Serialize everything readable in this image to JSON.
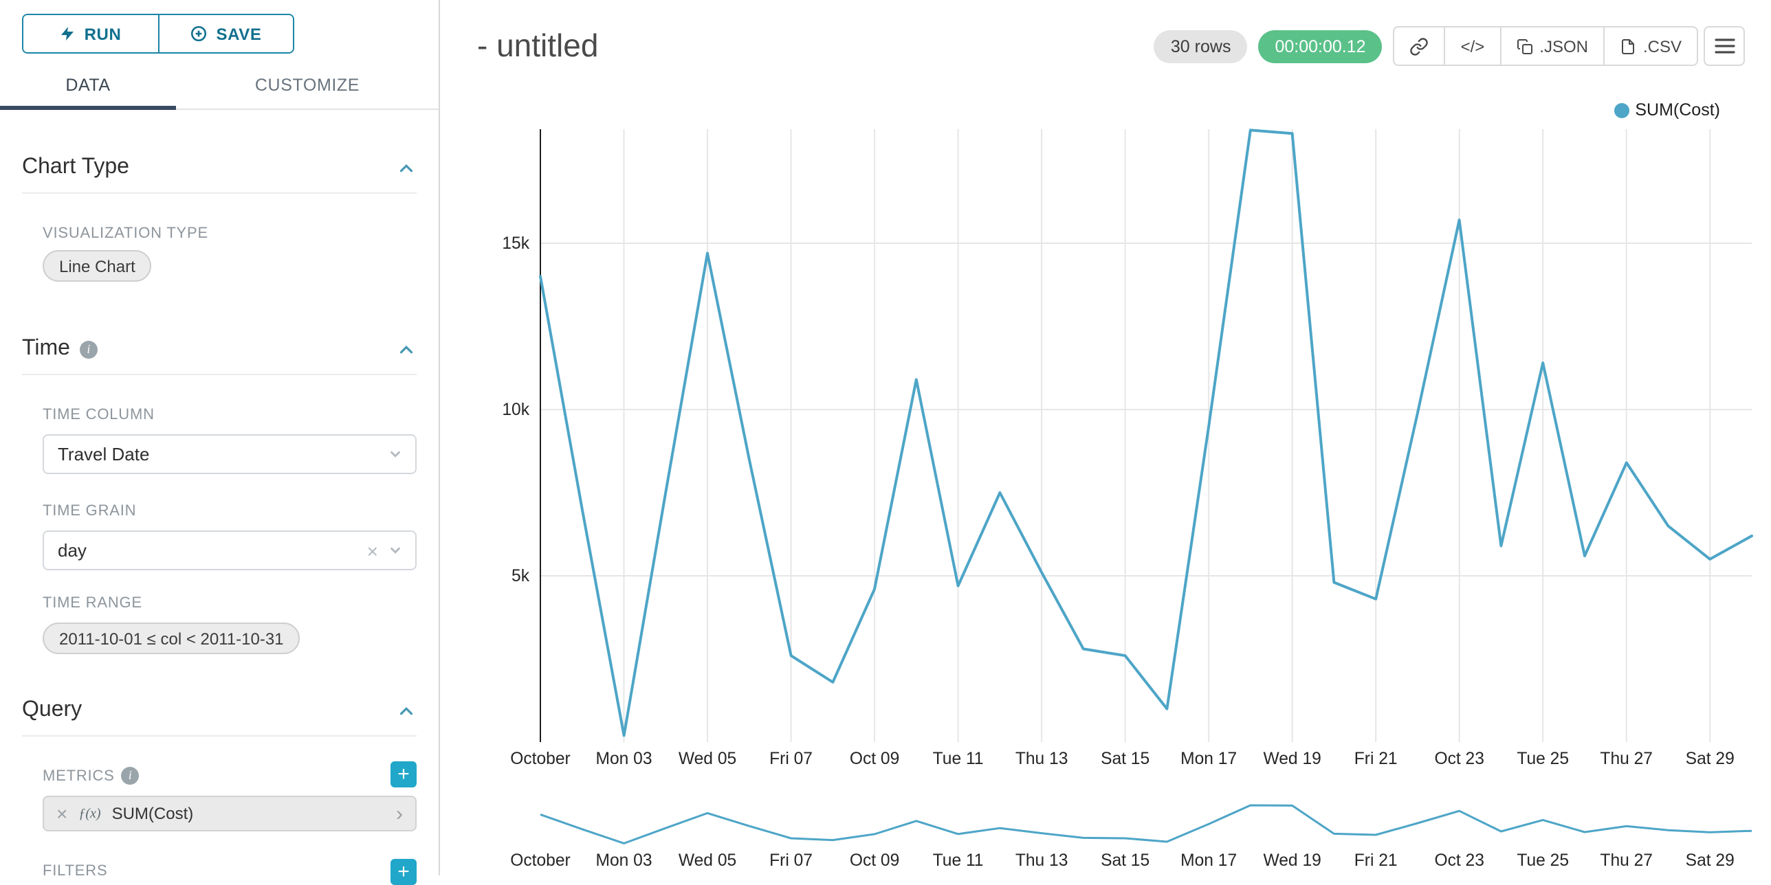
{
  "colors": {
    "primary": "#20a7c9",
    "button_outline": "#1a85a6",
    "line": "#4da5c7",
    "success_badge": "#5ac189",
    "rows_badge_bg": "#e4e4e4",
    "tab_underline": "#3a4a63"
  },
  "sidebar": {
    "run_button": "RUN",
    "save_button": "SAVE",
    "tabs": [
      {
        "label": "DATA",
        "active": true
      },
      {
        "label": "CUSTOMIZE",
        "active": false
      }
    ],
    "chart_type_section": {
      "title": "Chart Type",
      "visualization_type_label": "VISUALIZATION TYPE",
      "visualization_type_value": "Line Chart"
    },
    "time_section": {
      "title": "Time",
      "time_column_label": "TIME COLUMN",
      "time_column_value": "Travel Date",
      "time_grain_label": "TIME GRAIN",
      "time_grain_value": "day",
      "time_range_label": "TIME RANGE",
      "time_range_value": "2011-10-01 ≤ col < 2011-10-31"
    },
    "query_section": {
      "title": "Query",
      "metrics_label": "METRICS",
      "metric_fx": "ƒ(x)",
      "metric_value": "SUM(Cost)",
      "filters_label": "FILTERS",
      "add_button": "+"
    }
  },
  "header": {
    "title": "- untitled",
    "rows_badge": "30 rows",
    "timer_badge": "00:00:00.12",
    "embed_button": "</>",
    "json_button": ".JSON",
    "csv_button": ".CSV"
  },
  "chart_data": {
    "type": "line",
    "title": "- untitled",
    "x_start_date": "2011-10-01",
    "x_grain": "day",
    "row_count": 30,
    "series": [
      {
        "name": "SUM(Cost)",
        "color": "#4da5c7",
        "values": [
          14000,
          7000,
          200,
          7500,
          14700,
          8500,
          2600,
          1800,
          4600,
          10900,
          4700,
          7500,
          5100,
          2800,
          2600,
          1000,
          9500,
          18400,
          18300,
          4800,
          4300,
          9900,
          15700,
          5900,
          11400,
          5600,
          8400,
          6500,
          5500,
          6200
        ]
      }
    ],
    "x_tick_labels": [
      "October",
      "Mon 03",
      "Wed 05",
      "Fri 07",
      "Oct 09",
      "Tue 11",
      "Thu 13",
      "Sat 15",
      "Mon 17",
      "Wed 19",
      "Fri 21",
      "Oct 23",
      "Tue 25",
      "Thu 27",
      "Sat 29"
    ],
    "x_tick_indices": [
      0,
      2,
      4,
      6,
      8,
      10,
      12,
      14,
      16,
      18,
      20,
      22,
      24,
      26,
      28
    ],
    "y_ticks": [
      {
        "label": "5k",
        "value": 5000
      },
      {
        "label": "10k",
        "value": 10000
      },
      {
        "label": "15k",
        "value": 15000
      }
    ],
    "ylim": [
      0,
      18430
    ],
    "grid": true,
    "legend_position": "top-right",
    "has_preview_strip": true
  }
}
